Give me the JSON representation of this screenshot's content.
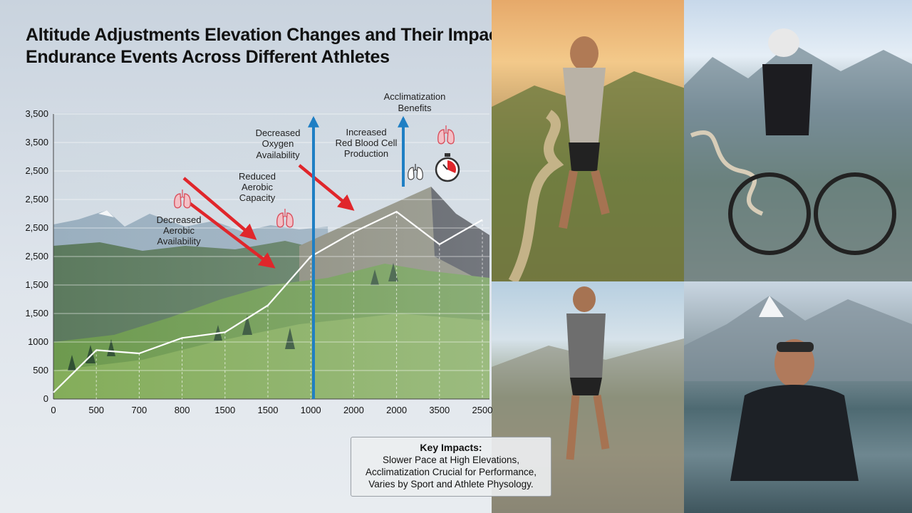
{
  "title": "Altitude Adjustments Elevation Changes and Their Impact on Endurance Events Across Different Athletes",
  "chart_data": {
    "type": "line",
    "title": "Altitude Adjustments Elevation Changes and Their Impact on Endurance Events Across Different Athletes",
    "xlabel": "",
    "ylabel": "",
    "x_tick_labels": [
      "0",
      "500",
      "700",
      "800",
      "1500",
      "1500",
      "1000",
      "2000",
      "2000",
      "3500",
      "2500"
    ],
    "y_tick_labels": [
      "3,500",
      "3,500",
      "2,500",
      "2,500",
      "2,500",
      "2,500",
      "1,500",
      "1,500",
      "1000",
      "500",
      "0"
    ],
    "series": [
      {
        "x": [
          0,
          1,
          2,
          3,
          4,
          5,
          6,
          7,
          8,
          9,
          10
        ],
        "y": [
          80,
          600,
          560,
          750,
          820,
          1150,
          1750,
          2050,
          2300,
          1900,
          2200
        ]
      }
    ],
    "grid": true,
    "annotations": [
      {
        "text": "Decreased Aerobic Availability",
        "direction": "down"
      },
      {
        "text": "Reduced Aerobic Capacity",
        "direction": "down"
      },
      {
        "text": "Decreased Oxygen Availability",
        "direction": "down"
      },
      {
        "text": "Increased Red Blood Cell Production",
        "direction": "up"
      },
      {
        "text": "Acclimatization Benefits",
        "direction": "up"
      }
    ],
    "colors": {
      "decrease_arrow": "#e0262b",
      "increase_arrow": "#1f7fc4",
      "line": "#ffffff"
    }
  },
  "key_impacts": {
    "title": "Key Impacts:",
    "lines": [
      "Slower Pace at High Elevations,",
      "Acclimatization Crucial for Performance,",
      "Varies by Sport and Athlete Physology."
    ]
  },
  "icons": [
    "lungs-icon",
    "stopwatch-icon"
  ]
}
